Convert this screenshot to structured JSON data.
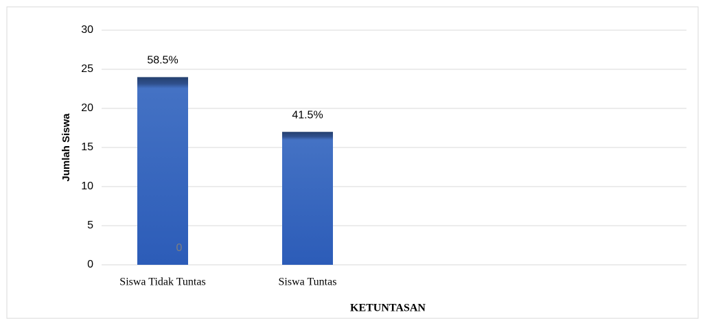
{
  "chart_data": {
    "type": "bar",
    "categories": [
      "Siswa Tidak Tuntas",
      "Siswa Tuntas",
      null,
      null
    ],
    "values": [
      24,
      17,
      null,
      null
    ],
    "data_labels": [
      "58.5%",
      "41.5%",
      null,
      null
    ],
    "annotation": "0",
    "color": "#4472c4",
    "ylabel": "Jumlah Siswa",
    "xlabel": "KETUNTASAN",
    "ylim": [
      0,
      30
    ],
    "yticks": [
      0,
      5,
      10,
      15,
      20,
      25,
      30
    ],
    "grid": true
  }
}
